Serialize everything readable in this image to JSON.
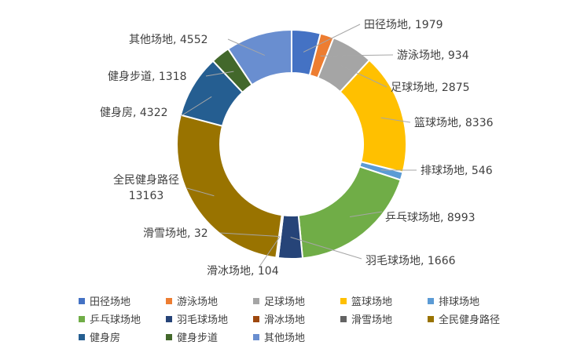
{
  "chart_data": {
    "type": "pie",
    "donut": true,
    "title": "",
    "legend_position": "bottom",
    "categories": [
      "田径场地",
      "游泳场地",
      "足球场地",
      "篮球场地",
      "排球场地",
      "乒乓球场地",
      "羽毛球场地",
      "滑冰场地",
      "滑雪场地",
      "全民健身路径",
      "健身房",
      "健身步道",
      "其他场地"
    ],
    "values": [
      1979,
      934,
      2875,
      8336,
      546,
      8993,
      1666,
      104,
      32,
      13163,
      4322,
      1318,
      4552
    ],
    "colors": [
      "#4472C4",
      "#ED7D31",
      "#A5A5A5",
      "#FFC000",
      "#5B9BD5",
      "#70AD47",
      "#264478",
      "#9E480E",
      "#636363",
      "#997300",
      "#255E91",
      "#43682B",
      "#698ED0"
    ],
    "data_labels": [
      "田径场地, 1979",
      "游泳场地, 934",
      "足球场地, 2875",
      "篮球场地, 8336",
      "排球场地, 546",
      "乒乓球场地, 8993",
      "羽毛球场地, 1666",
      "滑冰场地, 104",
      "滑雪场地, 32",
      "全民健身路径, 13163",
      "健身房, 4322",
      "健身步道, 1318",
      "其他场地, 4552"
    ]
  }
}
